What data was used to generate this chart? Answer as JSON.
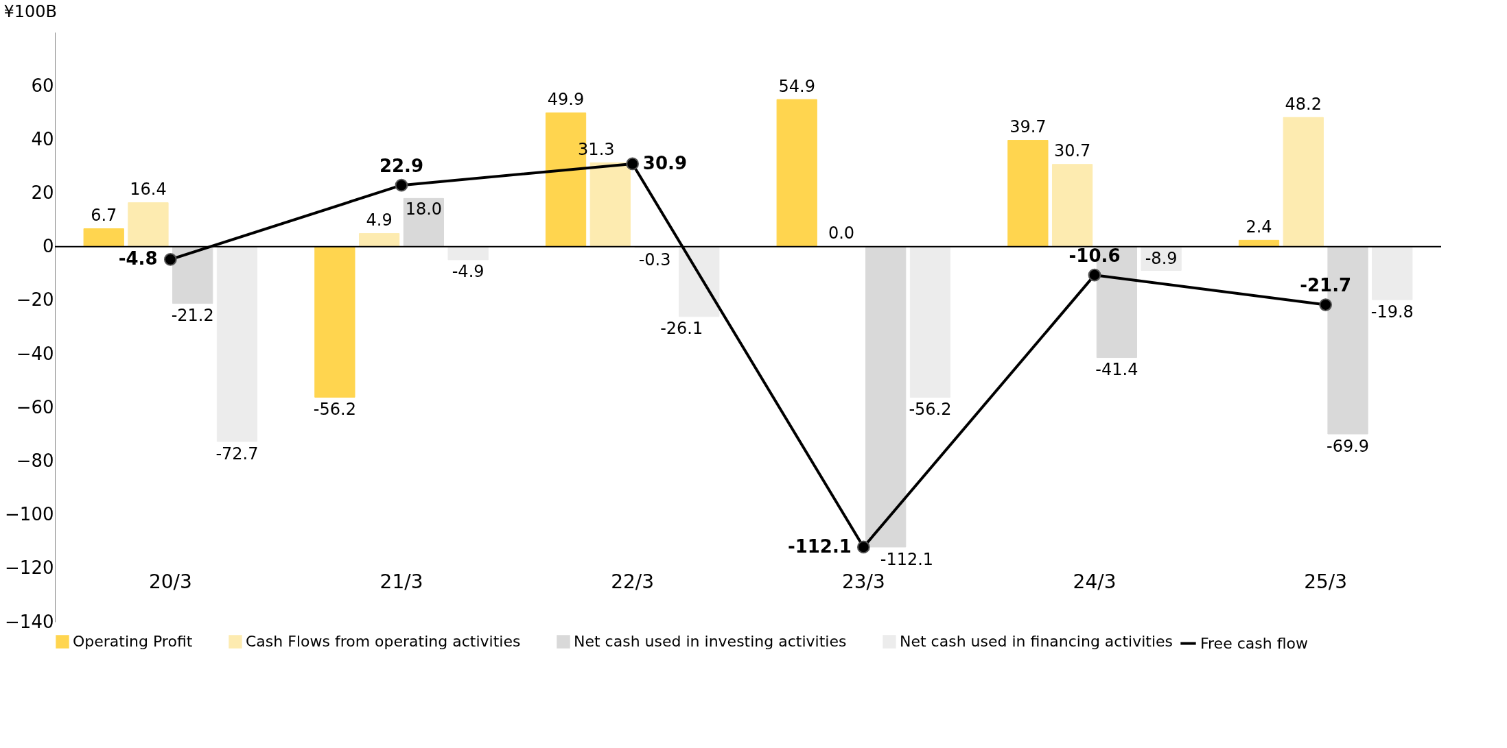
{
  "chart_data": {
    "type": "bar",
    "ylabel": "¥100B",
    "categories": [
      "20/3",
      "21/3",
      "22/3",
      "23/3",
      "24/3",
      "25/3"
    ],
    "series": [
      {
        "name": "Operating Profit",
        "color": "#ffd54f",
        "values": [
          6.7,
          -56.2,
          49.9,
          54.9,
          39.7,
          2.4
        ],
        "value_labels": [
          "6.7",
          "-56.2",
          "49.9",
          "54.9",
          "39.7",
          "2.4"
        ]
      },
      {
        "name": "Cash Flows from operating activities",
        "color": "#fdebb0",
        "values": [
          16.4,
          4.9,
          31.3,
          0.0,
          30.7,
          48.2
        ],
        "value_labels": [
          "16.4",
          "4.9",
          "31.3",
          "0.0",
          "30.7",
          "48.2"
        ]
      },
      {
        "name": "Net cash used in investing activities",
        "color": "#d9d9d9",
        "values": [
          -21.2,
          18.0,
          -0.3,
          -112.1,
          -41.4,
          -69.9
        ],
        "value_labels": [
          "-21.2",
          "18.0",
          "-0.3",
          "-112.1",
          "-41.4",
          "-69.9"
        ]
      },
      {
        "name": "Net cash used in financing activities",
        "color": "#ececec",
        "values": [
          -72.7,
          -4.9,
          -26.1,
          -56.2,
          -8.9,
          -19.8
        ],
        "value_labels": [
          "-72.7",
          "-4.9",
          "-26.1",
          "-56.2",
          "-8.9",
          "-19.8"
        ]
      },
      {
        "name": "Free cash flow",
        "type": "line",
        "color": "#000000",
        "marker": "circle",
        "values": [
          -4.8,
          22.9,
          30.9,
          -112.1,
          -10.6,
          -21.7
        ],
        "value_labels": [
          "-4.8",
          "22.9",
          "30.9",
          "-112.1",
          "-10.6",
          "-21.7"
        ]
      }
    ],
    "ylim": [
      -140,
      80
    ],
    "yticks": [
      -140,
      -120,
      -100,
      -80,
      -60,
      -40,
      -20,
      0,
      20,
      40,
      60
    ],
    "ref_lines": [
      {
        "axis": "y",
        "value": 0,
        "color": "#000000"
      }
    ],
    "grid": false,
    "legend": "bottom"
  }
}
